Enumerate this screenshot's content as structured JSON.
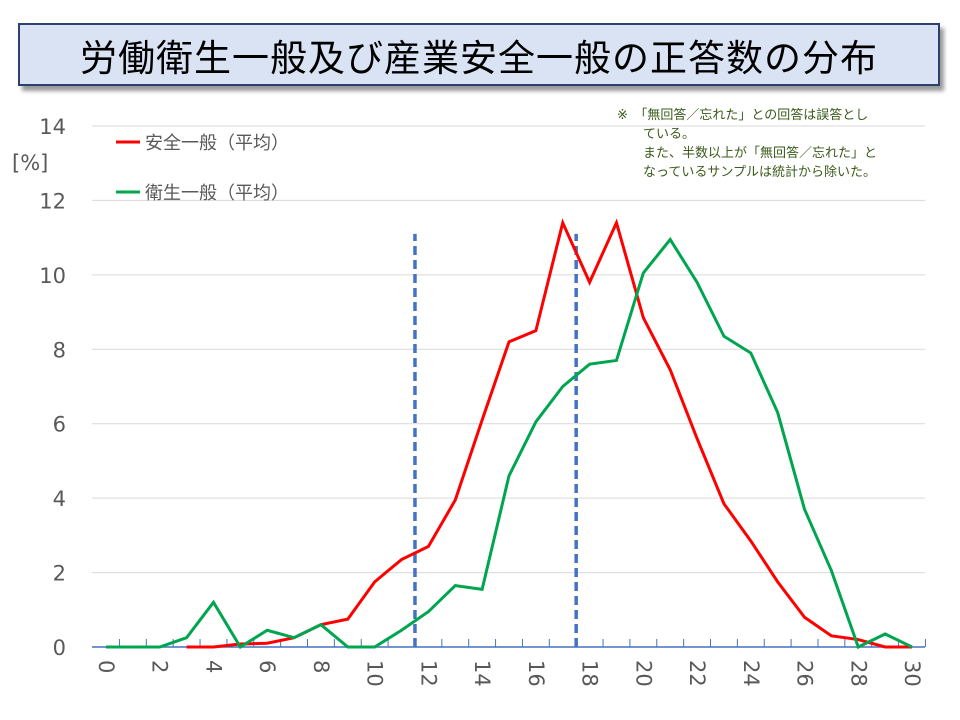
{
  "chart_data": {
    "type": "line",
    "title": "労働衛生一般及び産業安全一般の正答数の分布",
    "ylabel": "[%]",
    "xlabel": "",
    "ylim": [
      0,
      14
    ],
    "xlim": [
      0,
      30
    ],
    "y_ticks": [
      "0",
      "2",
      "4",
      "6",
      "8",
      "10",
      "12",
      "14"
    ],
    "x_ticks": [
      "0",
      "2",
      "4",
      "6",
      "8",
      "10",
      "12",
      "14",
      "16",
      "18",
      "20",
      "22",
      "24",
      "26",
      "28",
      "30"
    ],
    "grid": true,
    "legend_position": "top-left",
    "note": "※　「無回答／忘れた」との回答は誤答とし\n　　ている。\n　　また、半数以上が「無回答／忘れた」と\n　　なっているサンプルは統計から除いた。",
    "x": [
      0,
      1,
      2,
      3,
      4,
      5,
      6,
      7,
      8,
      9,
      10,
      11,
      12,
      13,
      14,
      15,
      16,
      17,
      18,
      19,
      20,
      21,
      22,
      23,
      24,
      25,
      26,
      27,
      28,
      29,
      30
    ],
    "series": [
      {
        "name": "安全一般（平均）",
        "color": "#ff0000",
        "start": 3,
        "values": [
          0,
          0,
          0,
          0,
          0,
          0.08,
          0.1,
          0.25,
          0.6,
          0.75,
          1.75,
          2.35,
          2.7,
          3.95,
          6.1,
          8.2,
          8.5,
          11.4,
          9.8,
          11.4,
          8.85,
          7.45,
          5.6,
          3.85,
          2.85,
          1.75,
          0.8,
          0.3,
          0.2,
          0,
          0
        ]
      },
      {
        "name": "衛生一般（平均）",
        "color": "#00a550",
        "start": 0,
        "values": [
          0,
          0,
          0,
          0.25,
          1.2,
          0,
          0.45,
          0.25,
          0.6,
          0,
          0,
          0.45,
          0.95,
          1.65,
          1.55,
          4.6,
          6.05,
          7.0,
          7.6,
          7.7,
          10.05,
          10.95,
          9.8,
          8.35,
          7.9,
          6.3,
          3.7,
          2.05,
          0,
          0.35,
          0
        ]
      }
    ],
    "reference_lines": [
      {
        "x": 11.5,
        "y_top": 11.1,
        "color": "#4472c4"
      },
      {
        "x": 17.5,
        "y_top": 11.1,
        "color": "#4472c4"
      }
    ]
  }
}
